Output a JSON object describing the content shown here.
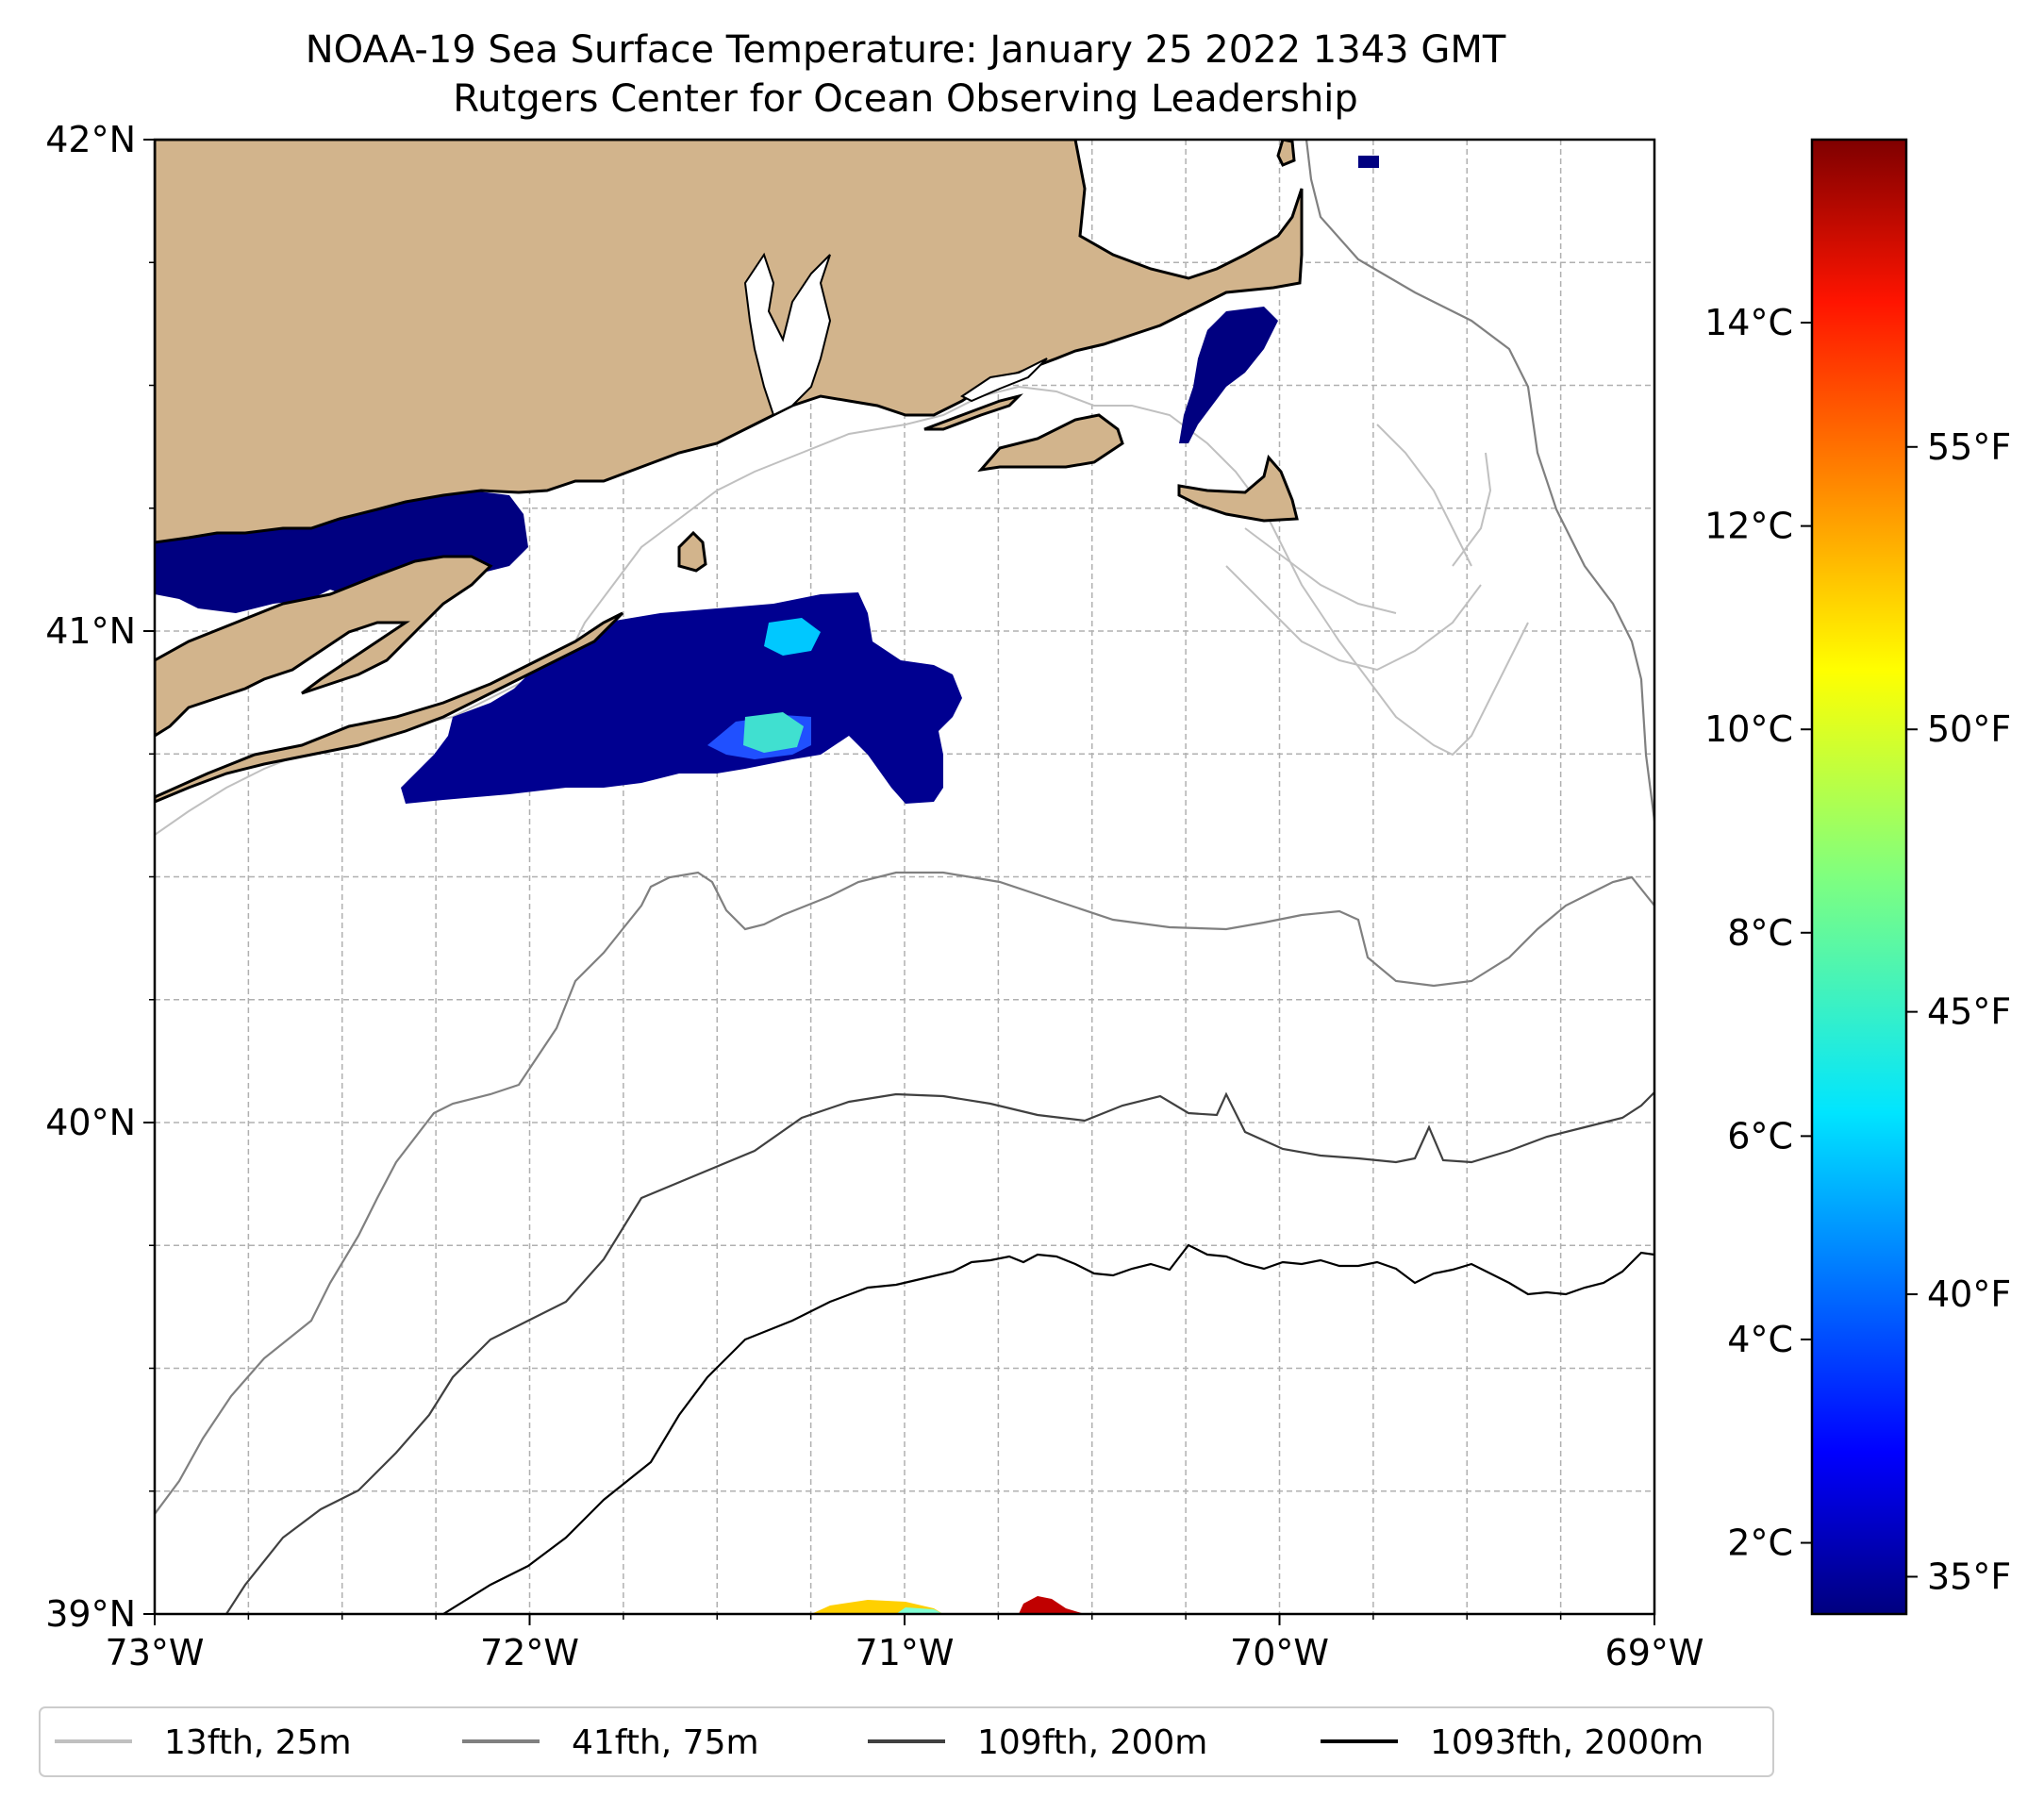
{
  "title": "NOAA-19 Sea Surface Temperature: January 25 2022 1343 GMT",
  "subtitle": "Rutgers Center for Ocean Observing Leadership",
  "map": {
    "lon_range": [
      -73,
      -69
    ],
    "lat_range": [
      39,
      42
    ],
    "lon_ticks": [
      "73°W",
      "72°W",
      "71°W",
      "70°W",
      "69°W"
    ],
    "lat_ticks": [
      "42°N",
      "41°N",
      "40°N",
      "39°N"
    ],
    "grid": true,
    "land_color": "#d2b48c",
    "land_features": [
      "Long Island",
      "Connecticut / Rhode Island coast",
      "Cape Cod",
      "Martha's Vineyard",
      "Nantucket",
      "Block Island"
    ]
  },
  "colorbar": {
    "colormap": "jet",
    "range_c": [
      1.3,
      15.8
    ],
    "celsius_ticks": [
      {
        "value": 2,
        "label": "2°C"
      },
      {
        "value": 4,
        "label": "4°C"
      },
      {
        "value": 6,
        "label": "6°C"
      },
      {
        "value": 8,
        "label": "8°C"
      },
      {
        "value": 10,
        "label": "10°C"
      },
      {
        "value": 12,
        "label": "12°C"
      },
      {
        "value": 14,
        "label": "14°C"
      }
    ],
    "fahrenheit_ticks": [
      {
        "value": 35,
        "label": "35°F"
      },
      {
        "value": 40,
        "label": "40°F"
      },
      {
        "value": 45,
        "label": "45°F"
      },
      {
        "value": 50,
        "label": "50°F"
      },
      {
        "value": 55,
        "label": "55°F"
      }
    ]
  },
  "legend": {
    "placement": "bottom",
    "items": [
      {
        "label": "13fth, 25m",
        "color": "#c0c0c0"
      },
      {
        "label": "41fth, 75m",
        "color": "#808080"
      },
      {
        "label": "109fth, 200m",
        "color": "#404040"
      },
      {
        "label": "1093fth, 2000m",
        "color": "#000000"
      }
    ]
  },
  "sst_patches": [
    {
      "area": "Long Island Sound",
      "color": "#000080"
    },
    {
      "area": "south of Block Island",
      "color": "#000090"
    },
    {
      "area": "Nantucket Sound",
      "color": "#000080"
    },
    {
      "area": "shelf edge",
      "color": "#c00000"
    }
  ]
}
